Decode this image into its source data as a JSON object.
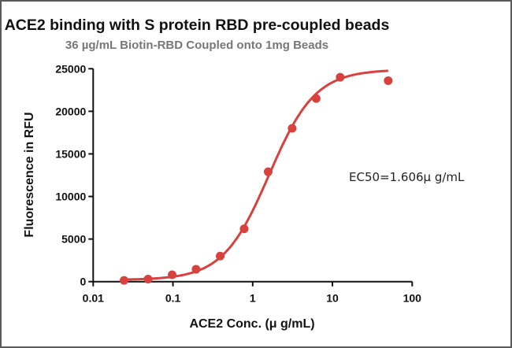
{
  "chart_data": {
    "type": "scatter",
    "title": "ACE2 binding with S protein RBD pre-coupled beads",
    "subtitle": "36 µg/mL Biotin-RBD Coupled onto 1mg Beads",
    "xlabel": "ACE2 Conc. (μ g/mL)",
    "ylabel": "Fluorescence in RFU",
    "xscale": "log",
    "xlim": [
      0.01,
      100
    ],
    "ylim": [
      0,
      25000
    ],
    "xticks": [
      "0.01",
      "0.1",
      "1",
      "10",
      "100"
    ],
    "yticks": [
      "0",
      "5000",
      "10000",
      "15000",
      "20000",
      "25000"
    ],
    "grid": false,
    "color": "#d9413f",
    "annotation": "EC50=1.606μ g/mL",
    "ec50": 1.606,
    "x": [
      0.0244,
      0.0488,
      0.0977,
      0.195,
      0.391,
      0.781,
      1.5625,
      3.125,
      6.25,
      12.5,
      50
    ],
    "y": [
      150,
      300,
      800,
      1450,
      3000,
      6200,
      12900,
      18000,
      21500,
      24000,
      23600
    ]
  }
}
